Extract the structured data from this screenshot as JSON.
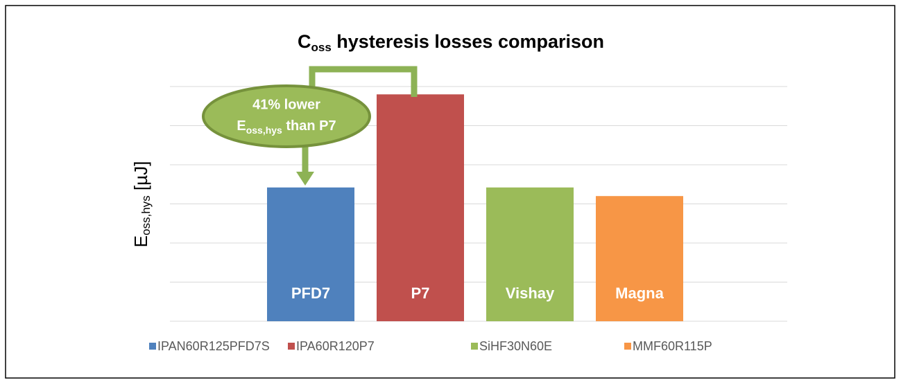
{
  "chart_data": {
    "type": "bar",
    "title": {
      "main": "C",
      "sub": "oss",
      "rest": " hysteresis losses comparison"
    },
    "ylabel": {
      "main": "E",
      "sub": "oss,hys",
      "rest": " [µJ]"
    },
    "annotation": {
      "line1": "41% lower",
      "main": "E",
      "sub": "oss,hys",
      "rest": " than P7"
    },
    "categories": [
      "PFD7",
      "P7",
      "Vishay",
      "Magna"
    ],
    "values": [
      3.42,
      5.8,
      3.42,
      3.2
    ],
    "colors": [
      "#4f81bd",
      "#c0504d",
      "#9bbb59",
      "#f79646"
    ],
    "legend": [
      "IPAN60R125PFD7S",
      "IPA60R120P7",
      "SiHF30N60E",
      "MMF60R115P"
    ],
    "ylim": [
      0,
      6
    ],
    "yticks": [
      0,
      1,
      2,
      3,
      4,
      5,
      6
    ],
    "grid": true
  }
}
